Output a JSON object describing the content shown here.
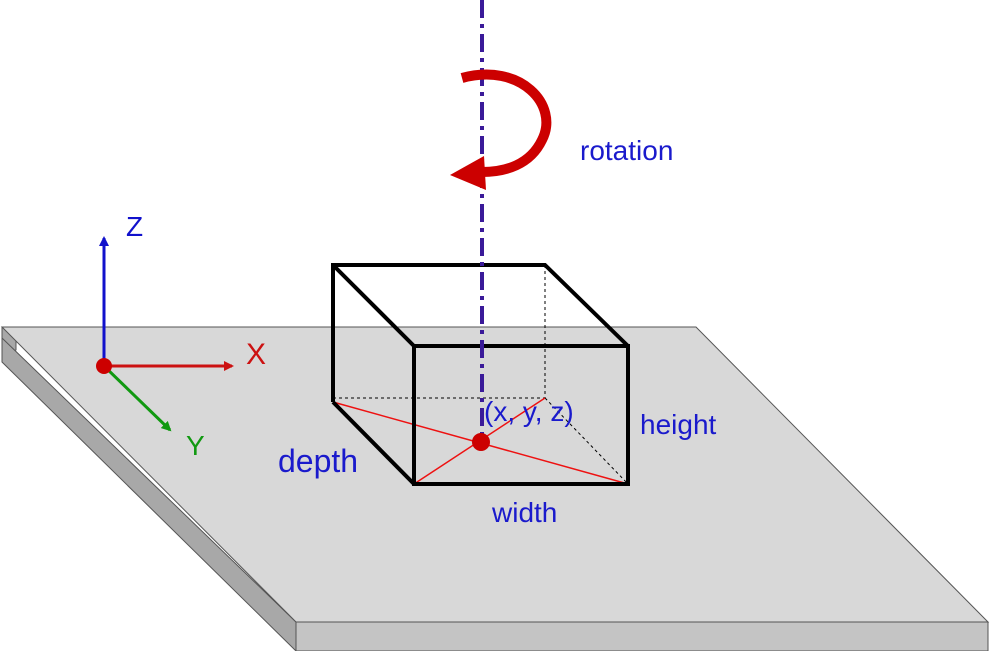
{
  "labels": {
    "rotation": "rotation",
    "position": "(x, y, z)",
    "width": "width",
    "height": "height",
    "depth": "depth"
  },
  "axes": {
    "x": "X",
    "y": "Y",
    "z": "Z"
  },
  "colors": {
    "plate_top": "#d8d8d8",
    "plate_side": "#a8a8a8",
    "plate_front": "#c4c4c4",
    "box_edge": "#000000",
    "label_blue": "#1a1acc",
    "axis_x": "#cc1111",
    "axis_y": "#119911",
    "axis_z": "#1111cc",
    "rotation_arrow": "#cc0000",
    "rotation_axis": "#3a1a99",
    "center_point": "#cc0000"
  },
  "icons": {
    "rotation": "rotation-arrow-icon",
    "center": "center-point-icon"
  }
}
